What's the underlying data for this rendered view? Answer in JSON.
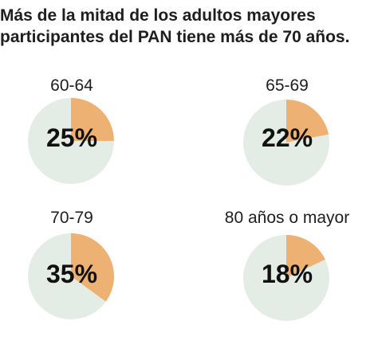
{
  "chart_data": [
    {
      "type": "pie",
      "title": "60-64",
      "slices": [
        {
          "value": 25
        },
        {
          "value": 75
        }
      ],
      "data_label": "25%"
    },
    {
      "type": "pie",
      "title": "65-69",
      "slices": [
        {
          "value": 22
        },
        {
          "value": 78
        }
      ],
      "data_label": "22%"
    },
    {
      "type": "pie",
      "title": "70-79",
      "slices": [
        {
          "value": 35
        },
        {
          "value": 65
        }
      ],
      "data_label": "35%"
    },
    {
      "type": "pie",
      "title": "80 años o mayor",
      "slices": [
        {
          "value": 18
        },
        {
          "value": 82
        }
      ],
      "data_label": "18%"
    }
  ],
  "header": {
    "title_line1": "Más de la mitad de los adultos mayores",
    "title_line2": "participantes del PAN tiene más de 70 años."
  },
  "colors": {
    "highlight": "#EDB273",
    "remainder": "#E4EDE5"
  }
}
